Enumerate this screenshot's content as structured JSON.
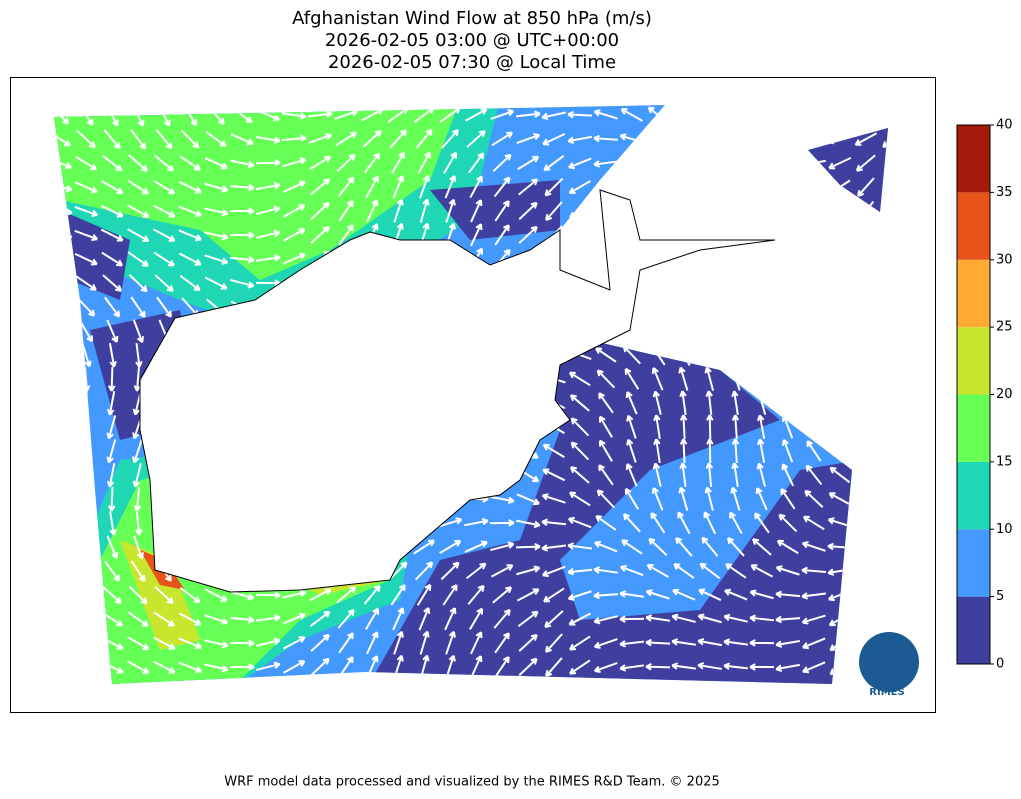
{
  "title": [
    "Afghanistan Wind Flow at 850 hPa (m/s)",
    "2026-02-05 03:00 @ UTC+00:00",
    "2026-02-05 07:30 @ Local Time"
  ],
  "colorbar": {
    "levels": [
      0,
      5,
      10,
      15,
      20,
      25,
      30,
      35,
      40
    ],
    "colors": [
      "#3f3fa0",
      "#4499ff",
      "#1fd6b5",
      "#66ff55",
      "#c8e62d",
      "#ffaa33",
      "#e8531a",
      "#a51a0a"
    ]
  },
  "logo": "RIMES",
  "footer": "WRF model data processed and visualized by the RIMES R&D Team. © 2025"
}
